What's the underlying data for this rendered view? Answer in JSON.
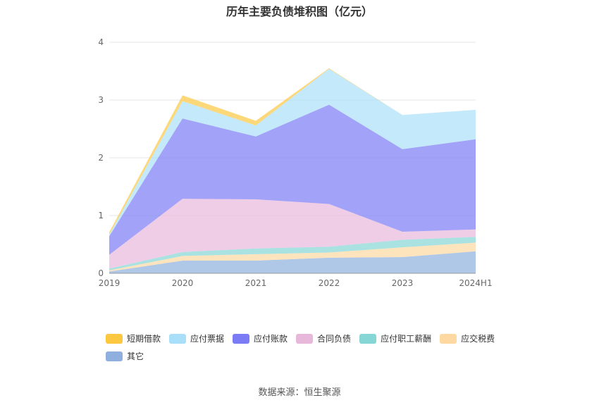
{
  "chart_data": {
    "type": "area",
    "stacked": true,
    "title": "历年主要负债堆积图（亿元）",
    "categories": [
      "2019",
      "2020",
      "2021",
      "2022",
      "2023",
      "2024H1"
    ],
    "ylim": [
      0,
      4
    ],
    "yticks": [
      "0",
      "1",
      "2",
      "3",
      "4"
    ],
    "grid": true,
    "legend_position": "bottom",
    "series": [
      {
        "name": "其它",
        "color": "#8fb0de",
        "values": [
          0.03,
          0.22,
          0.22,
          0.27,
          0.28,
          0.38
        ]
      },
      {
        "name": "应交税费",
        "color": "#fdd9a1",
        "values": [
          0.02,
          0.08,
          0.11,
          0.09,
          0.17,
          0.15
        ]
      },
      {
        "name": "应付职工薪酬",
        "color": "#86d6d6",
        "values": [
          0.03,
          0.07,
          0.1,
          0.1,
          0.13,
          0.1
        ]
      },
      {
        "name": "合同负债",
        "color": "#e8b8db",
        "values": [
          0.24,
          0.92,
          0.85,
          0.74,
          0.14,
          0.13
        ]
      },
      {
        "name": "应付账款",
        "color": "#7b7cf5",
        "values": [
          0.32,
          1.39,
          1.09,
          1.72,
          1.43,
          1.56
        ]
      },
      {
        "name": "应付票据",
        "color": "#a9dff8",
        "values": [
          0.03,
          0.3,
          0.19,
          0.62,
          0.59,
          0.51
        ]
      },
      {
        "name": "短期借款",
        "color": "#fcc841",
        "values": [
          0.04,
          0.1,
          0.08,
          0.01,
          0.0,
          0.0
        ]
      }
    ]
  },
  "legend_order": [
    "短期借款",
    "应付票据",
    "应付账款",
    "合同负债",
    "应付职工薪酬",
    "应交税费",
    "其它"
  ],
  "source_text": "数据来源：恒生聚源"
}
